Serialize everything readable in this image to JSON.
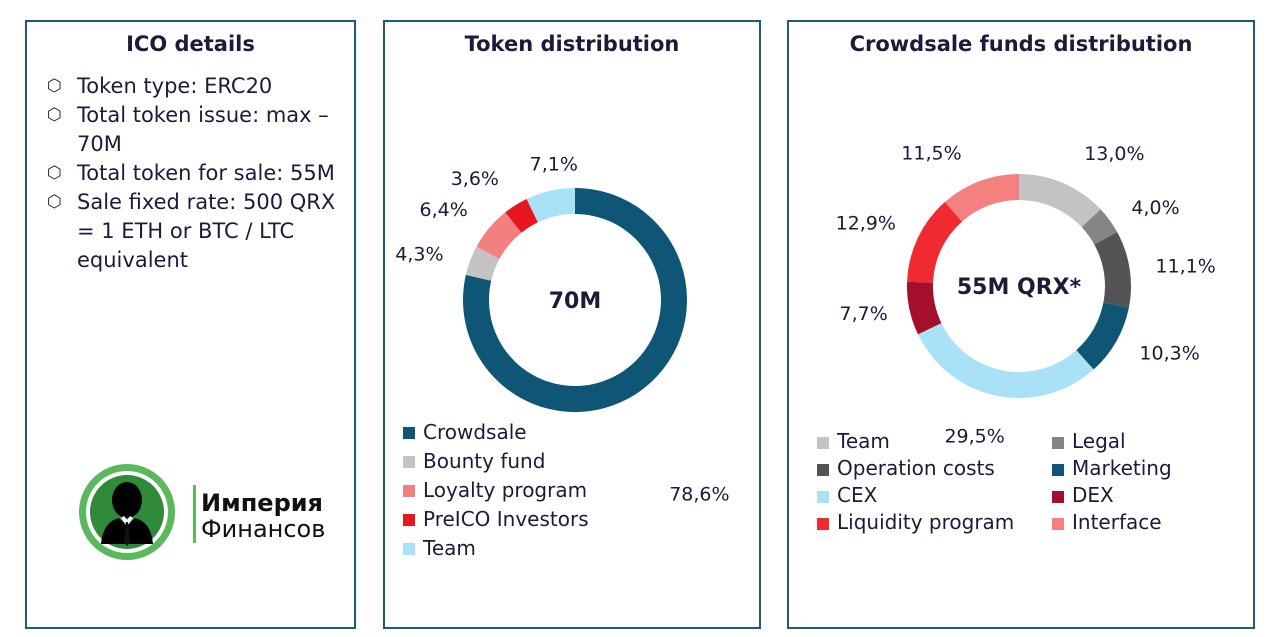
{
  "ico": {
    "title": "ICO details",
    "bullet": "⬡",
    "items": [
      "Token type: ERC20",
      "Total token issue: max – 70M",
      "Total token for sale: 55M",
      "Sale fixed rate: 500 QRX = 1 ETH or BTC / LTC equivalent"
    ]
  },
  "logo": {
    "line1": "Империя",
    "line2": "Финансов"
  },
  "chart_data": [
    {
      "type": "pie",
      "title": "Token distribution",
      "center_label": "70M",
      "slices": [
        {
          "name": "Crowdsale",
          "value": 78.6,
          "label": "78,6%",
          "color": "#0f5576"
        },
        {
          "name": "Bounty fund",
          "value": 4.3,
          "label": "4,3%",
          "color": "#c3c3c3"
        },
        {
          "name": "Loyalty program",
          "value": 6.4,
          "label": "6,4%",
          "color": "#f28080"
        },
        {
          "name": "PreICO Investors",
          "value": 3.6,
          "label": "3,6%",
          "color": "#e8161e"
        },
        {
          "name": "Team",
          "value": 7.1,
          "label": "7,1%",
          "color": "#a9e2f6"
        }
      ],
      "legend_position": "bottom"
    },
    {
      "type": "pie",
      "title": "Crowdsale funds distribution",
      "center_label": "55M QRX*",
      "slices": [
        {
          "name": "Team",
          "value": 13.0,
          "label": "13,0%",
          "color": "#c3c3c3"
        },
        {
          "name": "Legal",
          "value": 4.0,
          "label": "4,0%",
          "color": "#858585"
        },
        {
          "name": "Operation costs",
          "value": 11.1,
          "label": "11,1%",
          "color": "#545454"
        },
        {
          "name": "Marketing",
          "value": 10.3,
          "label": "10,3%",
          "color": "#0f5576"
        },
        {
          "name": "CEX",
          "value": 29.5,
          "label": "29,5%",
          "color": "#a9e2f6"
        },
        {
          "name": "DEX",
          "value": 7.7,
          "label": "7,7%",
          "color": "#a4102c"
        },
        {
          "name": "Liquidity program",
          "value": 12.9,
          "label": "12,9%",
          "color": "#ef2a30"
        },
        {
          "name": "Interface",
          "value": 11.5,
          "label": "11,5%",
          "color": "#f58080"
        }
      ],
      "legend_position": "bottom"
    }
  ]
}
